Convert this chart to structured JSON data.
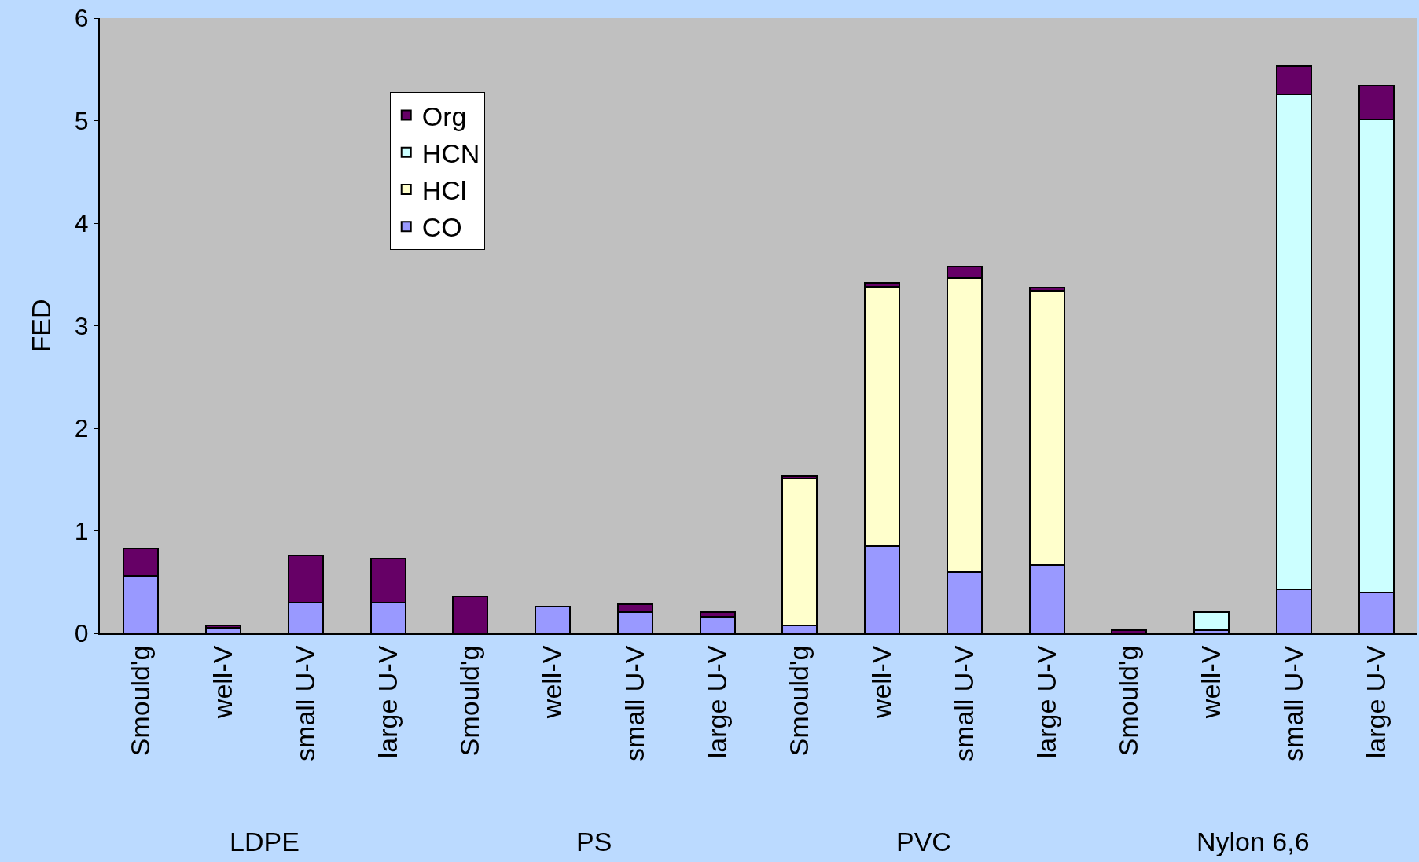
{
  "chart_data": {
    "type": "bar",
    "stacked": true,
    "ylabel": "FED",
    "categories": [
      "Smould'g",
      "well-V",
      "small U-V",
      "large U-V",
      "Smould'g",
      "well-V",
      "small U-V",
      "large U-V",
      "Smould'g",
      "well-V",
      "small U-V",
      "large U-V",
      "Smould'g",
      "well-V",
      "small U-V",
      "large U-V"
    ],
    "annotations": [
      "LDPE",
      "PS",
      "PVC",
      "Nylon 6,6"
    ],
    "series": [
      {
        "name": "CO",
        "color": "#9999ff",
        "values": [
          0.56,
          0.05,
          0.3,
          0.3,
          null,
          0.26,
          0.21,
          0.16,
          0.08,
          0.85,
          0.6,
          0.67,
          null,
          0.03,
          0.43,
          0.4
        ]
      },
      {
        "name": "HCl",
        "color": "#ffffcc",
        "values": [
          null,
          null,
          null,
          null,
          null,
          null,
          null,
          null,
          1.43,
          2.53,
          2.86,
          2.67,
          null,
          null,
          null,
          null
        ]
      },
      {
        "name": "HCN",
        "color": "#ccffff",
        "values": [
          null,
          null,
          null,
          null,
          null,
          null,
          null,
          null,
          null,
          null,
          null,
          null,
          null,
          0.18,
          4.83,
          4.61
        ]
      },
      {
        "name": "Org",
        "color": "#660066",
        "values": [
          0.27,
          0.03,
          0.46,
          0.43,
          0.36,
          null,
          0.07,
          0.05,
          0.02,
          0.04,
          0.12,
          0.03,
          0.03,
          null,
          0.27,
          0.33
        ]
      }
    ],
    "ylim": [
      0,
      6
    ],
    "yticks": [
      0,
      1,
      2,
      3,
      4,
      5,
      6
    ],
    "grid": false,
    "legend": "top left"
  }
}
